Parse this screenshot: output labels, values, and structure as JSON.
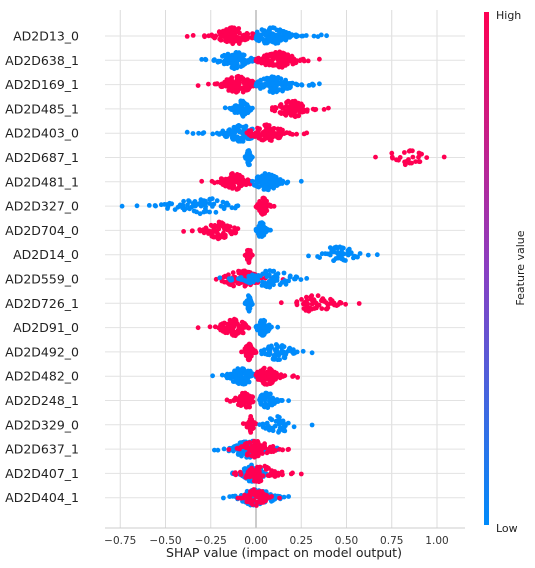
{
  "chart_data": {
    "type": "scatter",
    "subtype": "shap-beeswarm",
    "title": "",
    "xlabel": "SHAP value (impact on model output)",
    "xlim": [
      -0.8,
      1.1
    ],
    "xticks": [
      -0.75,
      -0.5,
      -0.25,
      0.0,
      0.25,
      0.5,
      0.75,
      1.0
    ],
    "xtick_labels": [
      "−0.75",
      "−0.50",
      "−0.25",
      "0.00",
      "0.25",
      "0.50",
      "0.75",
      "1.00"
    ],
    "grid": true,
    "colorbar": {
      "label": "Feature value",
      "high_label": "High",
      "low_label": "Low",
      "high_color": "#ff0052",
      "low_color": "#008bfb"
    },
    "features": [
      {
        "name": "AD2D13_0",
        "groups": [
          {
            "color": "high",
            "min": -0.38,
            "max": 0.0,
            "peak": -0.12,
            "count": 110
          },
          {
            "color": "low",
            "min": 0.0,
            "max": 0.39,
            "peak": 0.08,
            "count": 110
          }
        ]
      },
      {
        "name": "AD2D638_1",
        "groups": [
          {
            "color": "low",
            "min": -0.3,
            "max": 0.0,
            "peak": -0.12,
            "count": 100
          },
          {
            "color": "high",
            "min": 0.0,
            "max": 0.35,
            "peak": 0.12,
            "count": 110
          }
        ]
      },
      {
        "name": "AD2D169_1",
        "groups": [
          {
            "color": "high",
            "min": -0.32,
            "max": 0.0,
            "peak": -0.1,
            "count": 110
          },
          {
            "color": "low",
            "min": 0.0,
            "max": 0.35,
            "peak": 0.1,
            "count": 100
          }
        ]
      },
      {
        "name": "AD2D485_1",
        "groups": [
          {
            "color": "low",
            "min": -0.17,
            "max": -0.02,
            "peak": -0.08,
            "count": 60
          },
          {
            "color": "high",
            "min": 0.09,
            "max": 0.4,
            "peak": 0.2,
            "count": 80
          }
        ]
      },
      {
        "name": "AD2D403_0",
        "groups": [
          {
            "color": "low",
            "min": -0.38,
            "max": -0.02,
            "peak": -0.08,
            "count": 90
          },
          {
            "color": "high",
            "min": -0.05,
            "max": 0.28,
            "peak": 0.06,
            "count": 90
          }
        ]
      },
      {
        "name": "AD2D687_1",
        "groups": [
          {
            "color": "low",
            "min": -0.06,
            "max": -0.02,
            "peak": -0.04,
            "count": 40
          },
          {
            "color": "high",
            "min": 0.66,
            "max": 1.04,
            "peak": 0.82,
            "count": 30
          }
        ]
      },
      {
        "name": "AD2D481_1",
        "groups": [
          {
            "color": "high",
            "min": -0.3,
            "max": -0.02,
            "peak": -0.12,
            "count": 100
          },
          {
            "color": "low",
            "min": -0.02,
            "max": 0.25,
            "peak": 0.06,
            "count": 90
          }
        ]
      },
      {
        "name": "AD2D327_0",
        "groups": [
          {
            "color": "low",
            "min": -0.74,
            "max": -0.1,
            "peak": -0.3,
            "count": 70
          },
          {
            "color": "high",
            "min": 0.0,
            "max": 0.1,
            "peak": 0.04,
            "count": 70
          }
        ]
      },
      {
        "name": "AD2D704_0",
        "groups": [
          {
            "color": "high",
            "min": -0.4,
            "max": -0.1,
            "peak": -0.2,
            "count": 70
          },
          {
            "color": "low",
            "min": 0.0,
            "max": 0.08,
            "peak": 0.03,
            "count": 60
          }
        ]
      },
      {
        "name": "AD2D14_0",
        "groups": [
          {
            "color": "high",
            "min": -0.06,
            "max": -0.02,
            "peak": -0.04,
            "count": 40
          },
          {
            "color": "low",
            "min": 0.29,
            "max": 0.67,
            "peak": 0.45,
            "count": 50
          }
        ]
      },
      {
        "name": "AD2D559_0",
        "groups": [
          {
            "color": "high",
            "min": -0.22,
            "max": 0.15,
            "peak": -0.08,
            "count": 90
          },
          {
            "color": "low",
            "min": -0.2,
            "max": 0.28,
            "peak": 0.08,
            "count": 80
          }
        ]
      },
      {
        "name": "AD2D726_1",
        "groups": [
          {
            "color": "low",
            "min": -0.06,
            "max": -0.02,
            "peak": -0.04,
            "count": 40
          },
          {
            "color": "high",
            "min": 0.14,
            "max": 0.57,
            "peak": 0.32,
            "count": 60
          }
        ]
      },
      {
        "name": "AD2D91_0",
        "groups": [
          {
            "color": "high",
            "min": -0.32,
            "max": -0.04,
            "peak": -0.12,
            "count": 80
          },
          {
            "color": "low",
            "min": 0.0,
            "max": 0.12,
            "peak": 0.04,
            "count": 60
          }
        ]
      },
      {
        "name": "AD2D492_0",
        "groups": [
          {
            "color": "high",
            "min": -0.08,
            "max": 0.0,
            "peak": -0.04,
            "count": 50
          },
          {
            "color": "low",
            "min": 0.03,
            "max": 0.31,
            "peak": 0.12,
            "count": 60
          }
        ]
      },
      {
        "name": "AD2D482_0",
        "groups": [
          {
            "color": "low",
            "min": -0.24,
            "max": 0.02,
            "peak": -0.08,
            "count": 90
          },
          {
            "color": "high",
            "min": 0.0,
            "max": 0.23,
            "peak": 0.06,
            "count": 90
          }
        ]
      },
      {
        "name": "AD2D248_1",
        "groups": [
          {
            "color": "high",
            "min": -0.16,
            "max": 0.02,
            "peak": -0.06,
            "count": 70
          },
          {
            "color": "low",
            "min": 0.02,
            "max": 0.18,
            "peak": 0.06,
            "count": 60
          }
        ]
      },
      {
        "name": "AD2D329_0",
        "groups": [
          {
            "color": "high",
            "min": -0.07,
            "max": 0.0,
            "peak": -0.03,
            "count": 40
          },
          {
            "color": "low",
            "min": 0.02,
            "max": 0.31,
            "peak": 0.12,
            "count": 40
          }
        ]
      },
      {
        "name": "AD2D637_1",
        "groups": [
          {
            "color": "low",
            "min": -0.23,
            "max": 0.12,
            "peak": -0.04,
            "count": 80
          },
          {
            "color": "high",
            "min": -0.15,
            "max": 0.18,
            "peak": 0.0,
            "count": 80
          }
        ]
      },
      {
        "name": "AD2D407_1",
        "groups": [
          {
            "color": "low",
            "min": -0.13,
            "max": 0.12,
            "peak": -0.02,
            "count": 70
          },
          {
            "color": "high",
            "min": -0.12,
            "max": 0.25,
            "peak": 0.02,
            "count": 70
          }
        ]
      },
      {
        "name": "AD2D404_1",
        "groups": [
          {
            "color": "low",
            "min": -0.18,
            "max": 0.18,
            "peak": 0.0,
            "count": 80
          },
          {
            "color": "high",
            "min": -0.1,
            "max": 0.13,
            "peak": 0.0,
            "count": 60
          }
        ]
      }
    ]
  }
}
